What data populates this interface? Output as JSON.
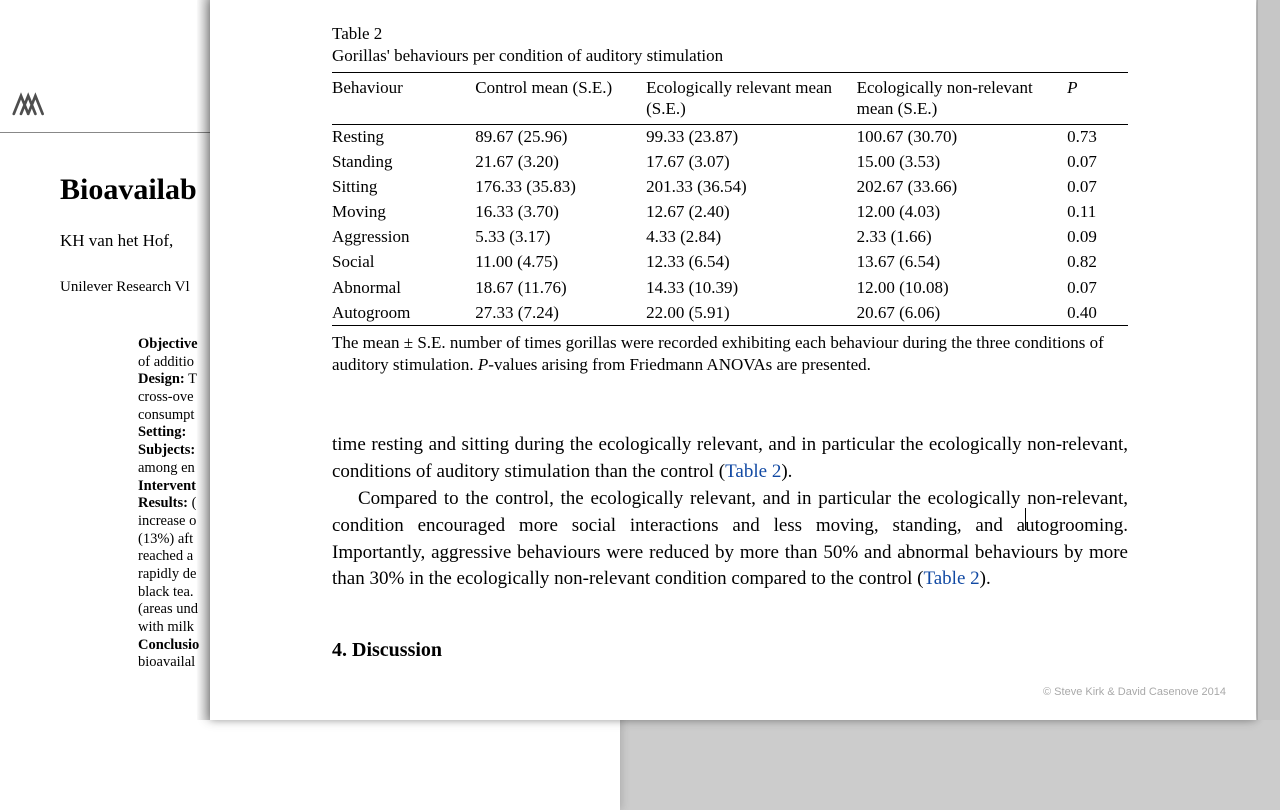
{
  "back": {
    "title": "Bioavailab",
    "authors": "KH van het Hof,",
    "affiliation": "Unilever Research Vl",
    "abstract": {
      "l1b": "Objective",
      "l1": "",
      "l2": "of additio",
      "l3b": "Design:",
      "l3": " T",
      "l4": "cross-ove",
      "l5": "consumpt",
      "l6b": "Setting:",
      "l6": " ",
      "l7b": "Subjects:",
      "l7": "",
      "l8": "among en",
      "l9b": "Intervent",
      "l9": "",
      "l10b": "Results:",
      "l10": " (",
      "l11": "increase o",
      "l12": "(13%) aft",
      "l13": "reached a",
      "l14": "rapidly de",
      "l15": "black tea.",
      "l16": "(areas und",
      "l17": "with milk",
      "l18b": "Conclusio",
      "l18": "",
      "l19": "bioavailal"
    }
  },
  "table": {
    "label": "Table 2",
    "caption": "Gorillas' behaviours per condition of auditory stimulation",
    "headers": {
      "behaviour": "Behaviour",
      "control": "Control mean (S.E.)",
      "eco_rel": "Ecologically relevant mean (S.E.)",
      "eco_non": "Ecologically non-relevant mean (S.E.)",
      "p": "P"
    },
    "rows": [
      {
        "b": "Resting",
        "c": "89.67 (25.96)",
        "e": "99.33 (23.87)",
        "n": "100.67 (30.70)",
        "p": "0.73"
      },
      {
        "b": "Standing",
        "c": "21.67 (3.20)",
        "e": "17.67 (3.07)",
        "n": "15.00 (3.53)",
        "p": "0.07"
      },
      {
        "b": "Sitting",
        "c": "176.33 (35.83)",
        "e": "201.33 (36.54)",
        "n": "202.67 (33.66)",
        "p": "0.07"
      },
      {
        "b": "Moving",
        "c": "16.33 (3.70)",
        "e": "12.67 (2.40)",
        "n": "12.00 (4.03)",
        "p": "0.11"
      },
      {
        "b": "Aggression",
        "c": "5.33 (3.17)",
        "e": "4.33 (2.84)",
        "n": "2.33 (1.66)",
        "p": "0.09"
      },
      {
        "b": "Social",
        "c": "11.00 (4.75)",
        "e": "12.33 (6.54)",
        "n": "13.67 (6.54)",
        "p": "0.82"
      },
      {
        "b": "Abnormal",
        "c": "18.67 (11.76)",
        "e": "14.33 (10.39)",
        "n": "12.00 (10.08)",
        "p": "0.07"
      },
      {
        "b": "Autogroom",
        "c": "27.33 (7.24)",
        "e": "22.00 (5.91)",
        "n": "20.67 (6.06)",
        "p": "0.40"
      }
    ],
    "note_pre": "The mean ± S.E. number of times gorillas were recorded exhibiting each behaviour during the three conditions of auditory stimulation. ",
    "note_ital": "P",
    "note_post": "-values arising from Friedmann ANOVAs are presented."
  },
  "body": {
    "p1a": "time resting and sitting during the ecologically relevant, and in particular the ecologically non-relevant, conditions of auditory stimulation than the control (",
    "p1link": "Table 2",
    "p1b": ").",
    "p2a": "Compared to the control, the ecologically relevant, and in particular the ecologically non-relevant, condition encouraged more social interactions and less moving, standing, and autogrooming. Importantly, aggressive behaviours were reduced by more than 50% and abnormal behaviours by more than 30% in the ecologically non-relevant condition compared to the control (",
    "p2link": "Table 2",
    "p2b": ")."
  },
  "section": "4.  Discussion",
  "watermark": "© Steve Kirk & David Casenove 2014"
}
